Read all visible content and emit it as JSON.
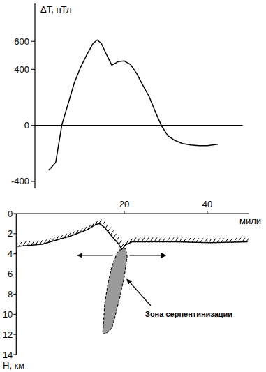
{
  "chart_data": [
    {
      "type": "line",
      "y_label": "ΔT, нТл",
      "x": [
        1.8,
        3.5,
        5,
        6.5,
        8,
        9.5,
        11,
        12.5,
        13.5,
        14.5,
        15.5,
        17,
        18.5,
        20,
        21.5,
        23,
        24.5,
        26,
        27.5,
        29,
        30.5,
        32,
        34,
        36,
        38,
        40,
        42.5
      ],
      "series": [
        {
          "color": "#000000",
          "line_style": "solid",
          "values": [
            -320,
            -265,
            5,
            155,
            305,
            415,
            505,
            585,
            610,
            585,
            520,
            430,
            455,
            460,
            435,
            370,
            285,
            205,
            95,
            -5,
            -75,
            -105,
            -130,
            -140,
            -145,
            -145,
            -135
          ]
        }
      ],
      "xlim": [
        -1.5,
        48.5
      ],
      "ylim": [
        -450,
        870
      ],
      "yticks": [
        -400,
        0,
        400,
        600
      ],
      "tick_labels": "y"
    },
    {
      "type": "line",
      "x_label": "мили",
      "y_label": "H, км",
      "xlim": [
        -6,
        50
      ],
      "ylim": [
        0,
        14
      ],
      "xticks": [
        20,
        40
      ],
      "yticks": [
        0,
        2,
        4,
        6,
        8,
        10,
        12,
        14
      ],
      "series": [
        {
          "color": "#000000",
          "line_style": "hatched",
          "x": [
            -5.7,
            0.2,
            6.9,
            11.1,
            13.3,
            14.1,
            15.3,
            17.0,
            18.7,
            19.4,
            20.3,
            22.0,
            25.4,
            32.1,
            40.5,
            49.7
          ],
          "values": [
            3.25,
            3.05,
            2.25,
            1.6,
            1.05,
            1.0,
            1.4,
            2.25,
            3.05,
            3.6,
            3.1,
            2.8,
            2.8,
            2.8,
            2.9,
            2.8
          ]
        },
        {
          "type": "area",
          "color": "#9a9a9a",
          "line_style": "dashed",
          "x": [
            18.9,
            20.3,
            20.7,
            20.0,
            19.0,
            17.8,
            17.0,
            15.6,
            14.8,
            15.0,
            15.3,
            16.1,
            17.0,
            18.3
          ],
          "values": [
            3.6,
            3.45,
            4.25,
            6.25,
            8.2,
            10.2,
            11.4,
            11.9,
            11.95,
            10.9,
            8.9,
            6.9,
            5.25,
            3.9
          ]
        }
      ],
      "annotations": [
        "Зона серпентинизации"
      ]
    }
  ]
}
